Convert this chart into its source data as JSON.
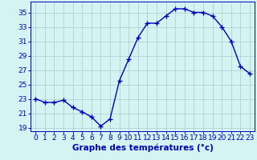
{
  "x": [
    0,
    1,
    2,
    3,
    4,
    5,
    6,
    7,
    8,
    9,
    10,
    11,
    12,
    13,
    14,
    15,
    16,
    17,
    18,
    19,
    20,
    21,
    22,
    23
  ],
  "y": [
    23.0,
    22.5,
    22.5,
    22.8,
    21.8,
    21.2,
    20.5,
    19.2,
    20.2,
    25.5,
    28.5,
    31.5,
    33.5,
    33.5,
    34.5,
    35.5,
    35.5,
    35.0,
    35.0,
    34.5,
    33.0,
    31.0,
    27.5,
    26.5
  ],
  "line_color": "#0000bb",
  "marker": "+",
  "marker_size": 4,
  "marker_lw": 1.0,
  "line_width": 1.0,
  "bg_color": "#d4f4f4",
  "grid_color": "#b0c8c8",
  "xlabel": "Graphe des températures (°c)",
  "xlabel_color": "#0000bb",
  "xlabel_fontsize": 7.5,
  "tick_color": "#0000bb",
  "tick_fontsize": 6.5,
  "ylim": [
    18.5,
    36.5
  ],
  "xlim": [
    -0.5,
    23.5
  ],
  "yticks": [
    19,
    21,
    23,
    25,
    27,
    29,
    31,
    33,
    35
  ],
  "xticks": [
    0,
    1,
    2,
    3,
    4,
    5,
    6,
    7,
    8,
    9,
    10,
    11,
    12,
    13,
    14,
    15,
    16,
    17,
    18,
    19,
    20,
    21,
    22,
    23
  ]
}
